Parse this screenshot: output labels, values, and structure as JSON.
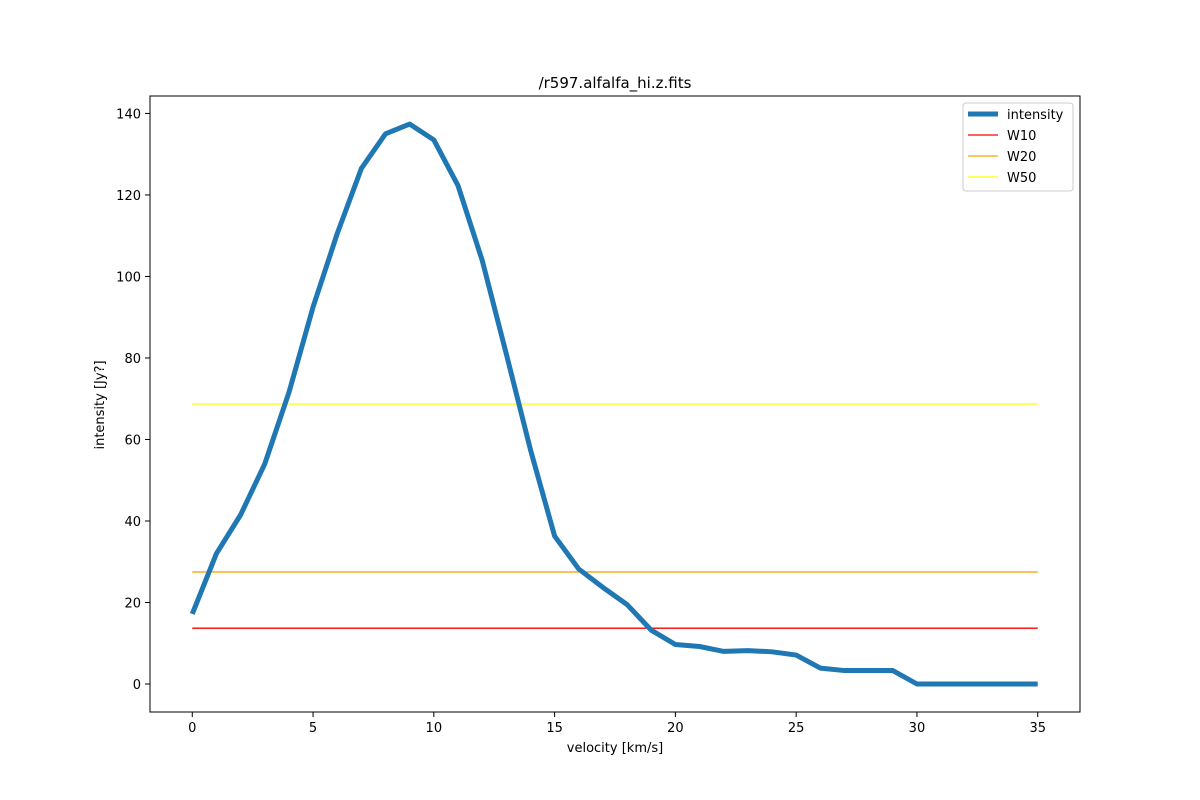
{
  "chart_data": {
    "type": "line",
    "title": "/r597.alfalfa_hi.z.fits",
    "xlabel": "velocity [km/s]",
    "ylabel": "intensity [Jy?]",
    "xlim": [
      -1.75,
      36.75
    ],
    "ylim": [
      -6.87,
      144.28
    ],
    "xticks": [
      0,
      5,
      10,
      15,
      20,
      25,
      30,
      35
    ],
    "yticks": [
      0,
      20,
      40,
      60,
      80,
      100,
      120,
      140
    ],
    "grid": false,
    "legend_position": "upper-right",
    "series": [
      {
        "name": "intensity",
        "color": "#1f77b4",
        "x": [
          0,
          1,
          2,
          3,
          4,
          5,
          6,
          7,
          8,
          9,
          10,
          11,
          12,
          13,
          14,
          15,
          16,
          17,
          18,
          19,
          20,
          21,
          22,
          23,
          24,
          25,
          26,
          27,
          28,
          29,
          30,
          31,
          32,
          33,
          34,
          35
        ],
        "y": [
          17.2,
          32.0,
          41.5,
          54.0,
          71.5,
          92.5,
          110.5,
          126.5,
          135.0,
          137.4,
          133.5,
          122.3,
          104.0,
          81.0,
          57.5,
          36.3,
          28.2,
          23.7,
          19.5,
          13.2,
          9.7,
          9.2,
          8.0,
          8.2,
          7.9,
          7.1,
          3.9,
          3.3,
          3.3,
          3.3,
          0.0,
          0.0,
          0.0,
          0.0,
          0.0,
          0.0
        ]
      },
      {
        "name": "W10",
        "color": "#ff0000",
        "x": [
          0,
          35
        ],
        "y": [
          13.7,
          13.7
        ]
      },
      {
        "name": "W20",
        "color": "#ffa500",
        "x": [
          0,
          35
        ],
        "y": [
          27.5,
          27.5
        ]
      },
      {
        "name": "W50",
        "color": "#ffff00",
        "x": [
          0,
          35
        ],
        "y": [
          68.7,
          68.7
        ]
      }
    ]
  }
}
